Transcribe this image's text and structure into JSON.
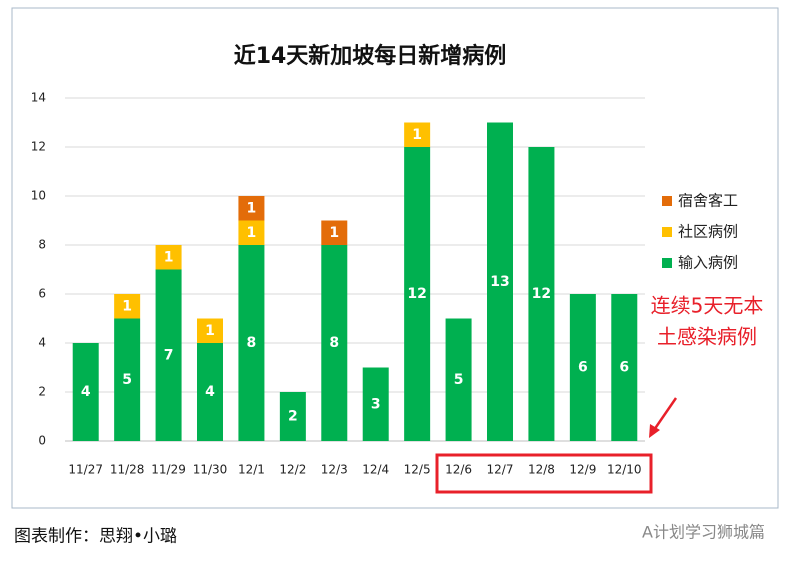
{
  "chart_data": {
    "type": "bar",
    "stacked": true,
    "title": "近14天新加坡每日新增病例",
    "categories": [
      "11/27",
      "11/28",
      "11/29",
      "11/30",
      "12/1",
      "12/2",
      "12/3",
      "12/4",
      "12/5",
      "12/6",
      "12/7",
      "12/8",
      "12/9",
      "12/10"
    ],
    "series": [
      {
        "name": "输入病例",
        "color": "#00b050",
        "values": [
          4,
          5,
          7,
          4,
          8,
          2,
          8,
          3,
          12,
          5,
          13,
          12,
          6,
          6
        ]
      },
      {
        "name": "社区病例",
        "color": "#ffc000",
        "values": [
          null,
          1,
          1,
          1,
          1,
          null,
          null,
          null,
          1,
          null,
          null,
          null,
          null,
          null
        ]
      },
      {
        "name": "宿舍客工",
        "color": "#e36c09",
        "values": [
          null,
          null,
          null,
          null,
          1,
          null,
          1,
          null,
          null,
          null,
          null,
          null,
          null,
          null
        ]
      }
    ],
    "ylim": [
      0,
      14
    ],
    "yticks": [
      0,
      2,
      4,
      6,
      8,
      10,
      12,
      14
    ],
    "grid": true,
    "annotation": [
      "连续5天无本",
      "土感染病例"
    ],
    "credit": "图表制作：思翔•小璐",
    "watermark": "A计划学习狮城篇"
  }
}
